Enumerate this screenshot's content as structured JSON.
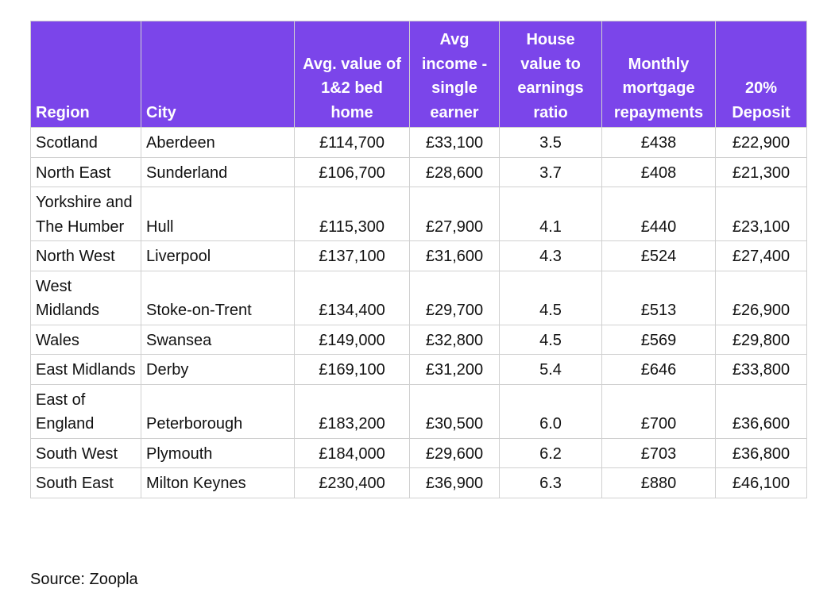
{
  "table": {
    "headers": [
      "Region",
      "City",
      "Avg. value of 1&2 bed home",
      "Avg income - single earner",
      "House value to earnings ratio",
      "Monthly mortgage repayments",
      "20% Deposit"
    ],
    "rows": [
      [
        "Scotland",
        "Aberdeen",
        "£114,700",
        "£33,100",
        "3.5",
        "£438",
        "£22,900"
      ],
      [
        "North East",
        "Sunderland",
        "£106,700",
        "£28,600",
        "3.7",
        "£408",
        "£21,300"
      ],
      [
        "Yorkshire and The Humber",
        "Hull",
        "£115,300",
        "£27,900",
        "4.1",
        "£440",
        "£23,100"
      ],
      [
        "North West",
        "Liverpool",
        "£137,100",
        "£31,600",
        "4.3",
        "£524",
        "£27,400"
      ],
      [
        "West Midlands",
        "Stoke-on-Trent",
        "£134,400",
        "£29,700",
        "4.5",
        "£513",
        "£26,900"
      ],
      [
        "Wales",
        "Swansea",
        "£149,000",
        "£32,800",
        "4.5",
        "£569",
        "£29,800"
      ],
      [
        "East Midlands",
        "Derby",
        "£169,100",
        "£31,200",
        "5.4",
        "£646",
        "£33,800"
      ],
      [
        "East of England",
        "Peterborough",
        "£183,200",
        "£30,500",
        "6.0",
        "£700",
        "£36,600"
      ],
      [
        "South West",
        "Plymouth",
        "£184,000",
        "£29,600",
        "6.2",
        "£703",
        "£36,800"
      ],
      [
        "South East",
        "Milton Keynes",
        "£230,400",
        "£36,900",
        "6.3",
        "£880",
        "£46,100"
      ]
    ]
  },
  "source": "Source: Zoopla",
  "colors": {
    "header_background": "#7b45ea",
    "header_text": "#ffffff",
    "grid_lines": "#d0d0d0"
  }
}
